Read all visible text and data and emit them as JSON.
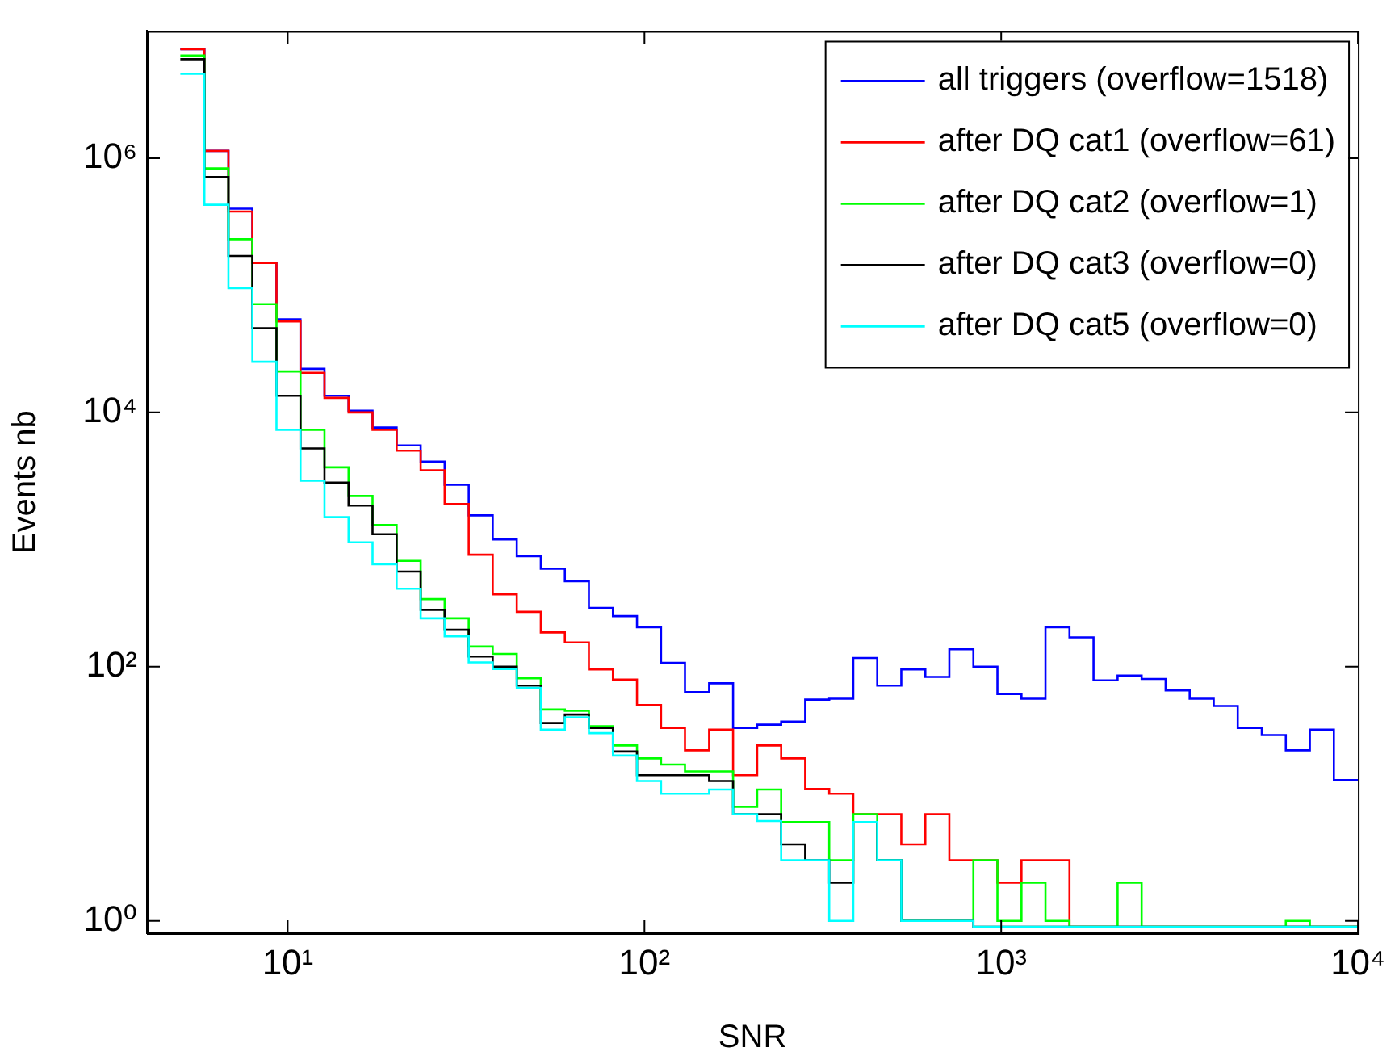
{
  "chart_data": {
    "type": "histogram",
    "xlabel": "SNR",
    "ylabel": "Events nb",
    "log": "xy",
    "grid": false,
    "legend": "top right",
    "xlim": [
      4.03,
      10000
    ],
    "ylim": [
      0.8,
      10000000
    ],
    "xticks": [
      {
        "value": 10,
        "label": "10¹"
      },
      {
        "value": 100,
        "label": "10²"
      },
      {
        "value": 1000,
        "label": "10³"
      },
      {
        "value": 10000,
        "label": "10⁴"
      }
    ],
    "yticks": [
      {
        "value": 1,
        "label": "10⁰"
      },
      {
        "value": 100,
        "label": "10²"
      },
      {
        "value": 10000,
        "label": "10⁴"
      },
      {
        "value": 1000000,
        "label": "10⁶"
      }
    ],
    "bins": [
      5,
      5.84,
      6.82,
      7.96,
      9.3,
      10.86,
      12.68,
      14.81,
      17.29,
      20.2,
      23.59,
      27.54,
      32.17,
      37.56,
      43.87,
      51.23,
      59.83,
      69.87,
      81.6,
      95.3,
      111.3,
      129.9,
      151.8,
      177.2,
      207,
      241.7,
      282.2,
      329.6,
      384.9,
      449.4,
      524.8,
      612.9,
      715.6,
      835.7,
      976,
      1140,
      1331,
      1554,
      1815,
      2120,
      2476,
      2891,
      3376,
      3943,
      4604,
      5377,
      6279,
      7333,
      8563,
      10000
    ],
    "series": [
      {
        "name": "all triggers (overflow=1518)",
        "color": "#0000ff",
        "values": [
          7200000,
          1140000,
          400000,
          150000,
          54000,
          22000,
          13500,
          10300,
          7600,
          5500,
          4100,
          2700,
          1550,
          1000,
          740,
          590,
          470,
          290,
          250,
          204,
          107,
          63,
          74,
          33,
          35,
          37,
          55,
          56,
          117,
          71,
          95,
          83,
          137,
          100,
          61,
          56,
          204,
          170,
          78,
          85,
          80,
          65,
          56,
          49,
          33,
          29,
          22,
          32,
          12.8
        ]
      },
      {
        "name": "after DQ cat1 (overflow=61)",
        "color": "#ff0000",
        "values": [
          7200000,
          1140000,
          380000,
          150000,
          52000,
          20500,
          13000,
          10000,
          7300,
          5000,
          3500,
          1900,
          760,
          370,
          270,
          186,
          155,
          95,
          79,
          50,
          33,
          22,
          32,
          14,
          24,
          19,
          10.9,
          10,
          6.9,
          6.9,
          4,
          6.9,
          3,
          3,
          2,
          3,
          3,
          0.9,
          0.9,
          0.9,
          0.9,
          0.9,
          0.9,
          0.9,
          0.9,
          0.9,
          0.9,
          0.9,
          0.9
        ]
      },
      {
        "name": "after DQ cat2 (overflow=1)",
        "color": "#00ff00",
        "values": [
          6400000,
          830000,
          230000,
          71000,
          21000,
          7300,
          3700,
          2200,
          1300,
          680,
          340,
          240,
          144,
          126,
          81,
          46,
          45,
          34,
          24,
          19,
          17,
          15,
          15,
          7.9,
          10.8,
          6,
          6,
          3,
          6.9,
          3,
          1,
          1,
          1,
          3,
          1,
          2,
          1,
          0.9,
          0.9,
          2,
          0.9,
          0.9,
          0.9,
          0.9,
          0.9,
          0.9,
          1,
          0.9,
          0.9
        ]
      },
      {
        "name": "after DQ cat3 (overflow=0)",
        "color": "#000000",
        "values": [
          6000000,
          710000,
          170000,
          46000,
          13500,
          5200,
          2800,
          1850,
          1100,
          560,
          280,
          195,
          120,
          100,
          71,
          36,
          42,
          33,
          21.5,
          14,
          14,
          14,
          12.6,
          6.9,
          6.9,
          4,
          3,
          2,
          6,
          3,
          1,
          1,
          1,
          0.9,
          0.9,
          0.9,
          0.9,
          0.9,
          0.9,
          0.9,
          0.9,
          0.9,
          0.9,
          0.9,
          0.9,
          0.9,
          0.9,
          0.9,
          0.9
        ]
      },
      {
        "name": "after DQ cat5 (overflow=0)",
        "color": "#00ffff",
        "values": [
          4600000,
          430000,
          95000,
          25000,
          7300,
          2900,
          1500,
          950,
          640,
          410,
          240,
          173,
          108,
          96,
          68,
          32,
          40,
          30,
          20,
          12.6,
          10,
          10,
          10.8,
          6.9,
          6.1,
          3,
          3,
          1,
          6,
          3,
          1,
          1,
          1,
          0.9,
          0.9,
          0.9,
          0.9,
          0.9,
          0.9,
          0.9,
          0.9,
          0.9,
          0.9,
          0.9,
          0.9,
          0.9,
          0.9,
          0.9,
          0.9
        ]
      }
    ]
  }
}
